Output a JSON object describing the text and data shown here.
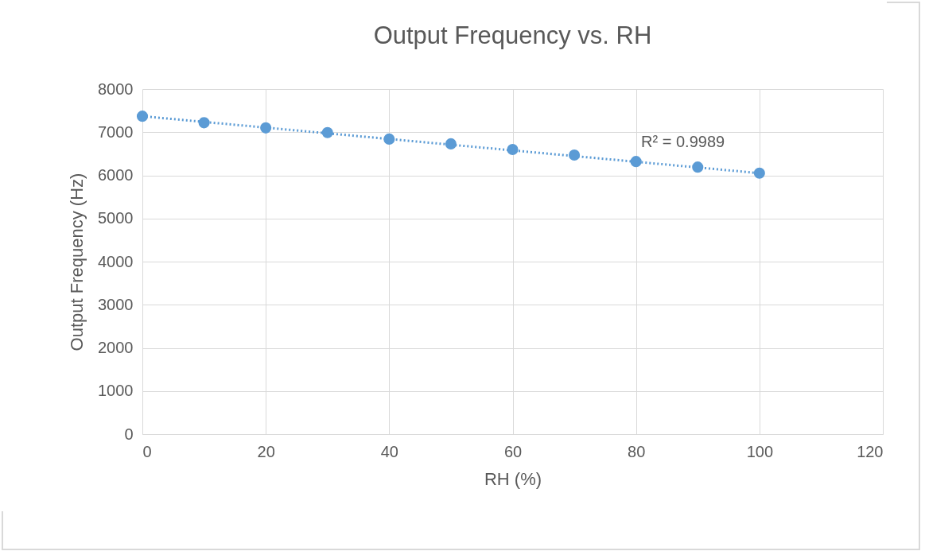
{
  "chart_data": {
    "type": "scatter",
    "title": "Output Frequency vs. RH",
    "xlabel": "RH (%)",
    "ylabel": "Output Frequency (Hz)",
    "x": [
      0,
      10,
      20,
      30,
      40,
      50,
      60,
      70,
      80,
      90,
      100
    ],
    "series": [
      {
        "color": "#5b9bd5",
        "marker": "circle",
        "values": [
          7370,
          7220,
          7100,
          6990,
          6840,
          6730,
          6600,
          6470,
          6320,
          6190,
          6050
        ]
      },
      {
        "type": "line",
        "color": "#5b9bd5",
        "marker": "none",
        "line_style": "dotted",
        "x": [
          0,
          100
        ],
        "values": [
          7370,
          6050
        ]
      }
    ],
    "xlim": [
      0,
      120
    ],
    "xticks": [
      0,
      20,
      40,
      60,
      80,
      100,
      120
    ],
    "ylim": [
      0,
      8000
    ],
    "yticks": [
      0,
      1000,
      2000,
      3000,
      4000,
      5000,
      6000,
      7000,
      8000
    ],
    "grid": true,
    "annotations": [
      "R² = 0.9989"
    ]
  }
}
